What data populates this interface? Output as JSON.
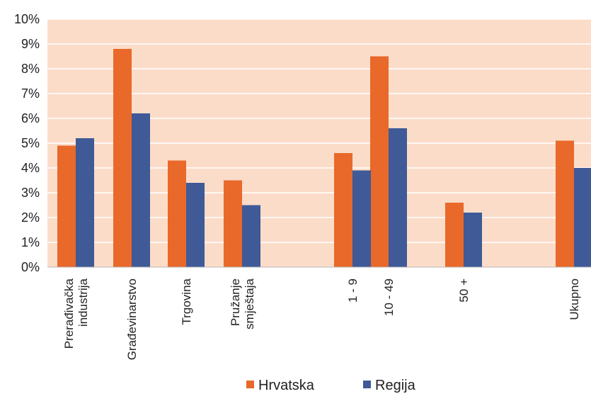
{
  "chart_data": {
    "type": "bar",
    "categories": [
      [
        "Prerađivačka",
        "industrija"
      ],
      [
        "Građevinarstvo"
      ],
      [
        "Trgovina"
      ],
      [
        "Pružanje",
        "smještaja"
      ],
      [
        "1 - 9"
      ],
      [
        "10 - 49"
      ],
      [
        "50 +"
      ],
      [
        "Ukupno"
      ]
    ],
    "series": [
      {
        "name": "Hrvatska",
        "color": "#e8692a",
        "values": [
          4.9,
          8.8,
          4.3,
          3.5,
          4.6,
          8.5,
          2.6,
          5.1
        ]
      },
      {
        "name": "Regija",
        "color": "#3f5a97",
        "values": [
          5.2,
          6.2,
          3.4,
          2.5,
          3.9,
          5.6,
          2.2,
          4.0
        ]
      }
    ],
    "ylim": [
      0,
      10
    ],
    "yticks": [
      "0%",
      "1%",
      "2%",
      "3%",
      "4%",
      "5%",
      "6%",
      "7%",
      "8%",
      "9%",
      "10%"
    ],
    "title": "",
    "xlabel": "",
    "ylabel": "",
    "grid": true,
    "legend_position": "bottom",
    "plot_background": "#fbdcc9",
    "gridline_color": "#ffffff"
  }
}
